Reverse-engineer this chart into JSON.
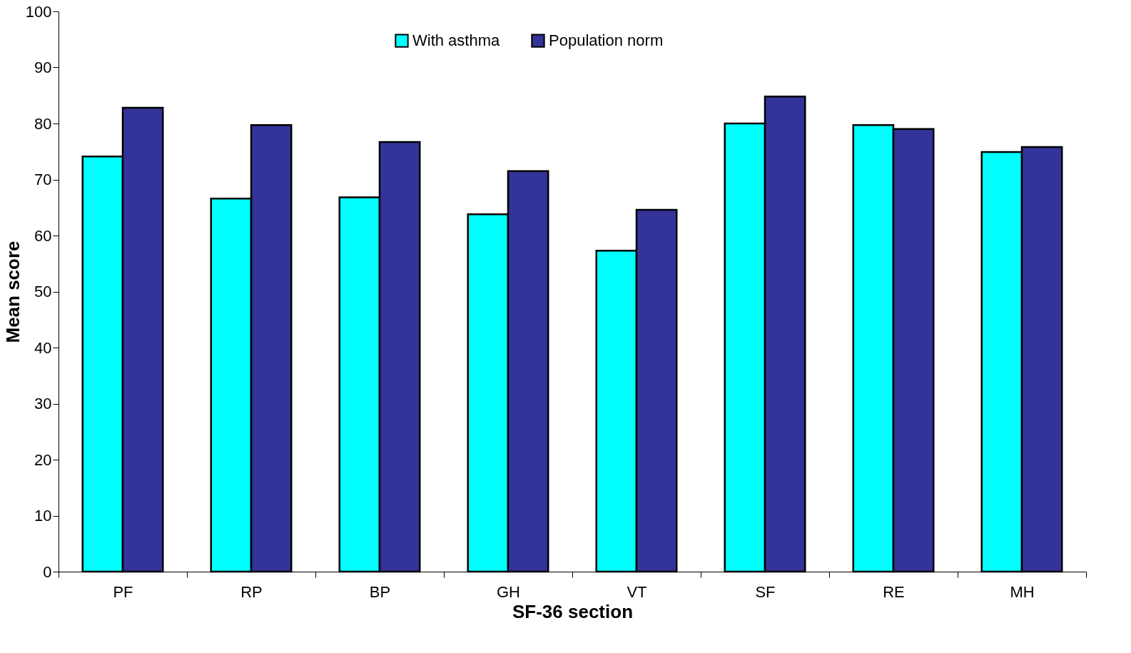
{
  "chart_data": {
    "type": "bar",
    "xlabel": "SF-36 section",
    "ylabel": "Mean score",
    "categories": [
      "PF",
      "RP",
      "BP",
      "GH",
      "VT",
      "SF",
      "RE",
      "MH"
    ],
    "series": [
      {
        "name": "With asthma",
        "color": "#00ffff",
        "values": [
          74.1,
          66.6,
          66.8,
          63.8,
          57.3,
          80.0,
          79.7,
          74.9
        ]
      },
      {
        "name": "Population norm",
        "color": "#333399",
        "values": [
          82.8,
          79.7,
          76.7,
          71.5,
          64.6,
          84.8,
          79.0,
          75.8
        ]
      }
    ],
    "ylim": [
      0,
      100
    ],
    "yticks": [
      0,
      10,
      20,
      30,
      40,
      50,
      60,
      70,
      80,
      90,
      100
    ],
    "grid": false,
    "legend": "top"
  }
}
